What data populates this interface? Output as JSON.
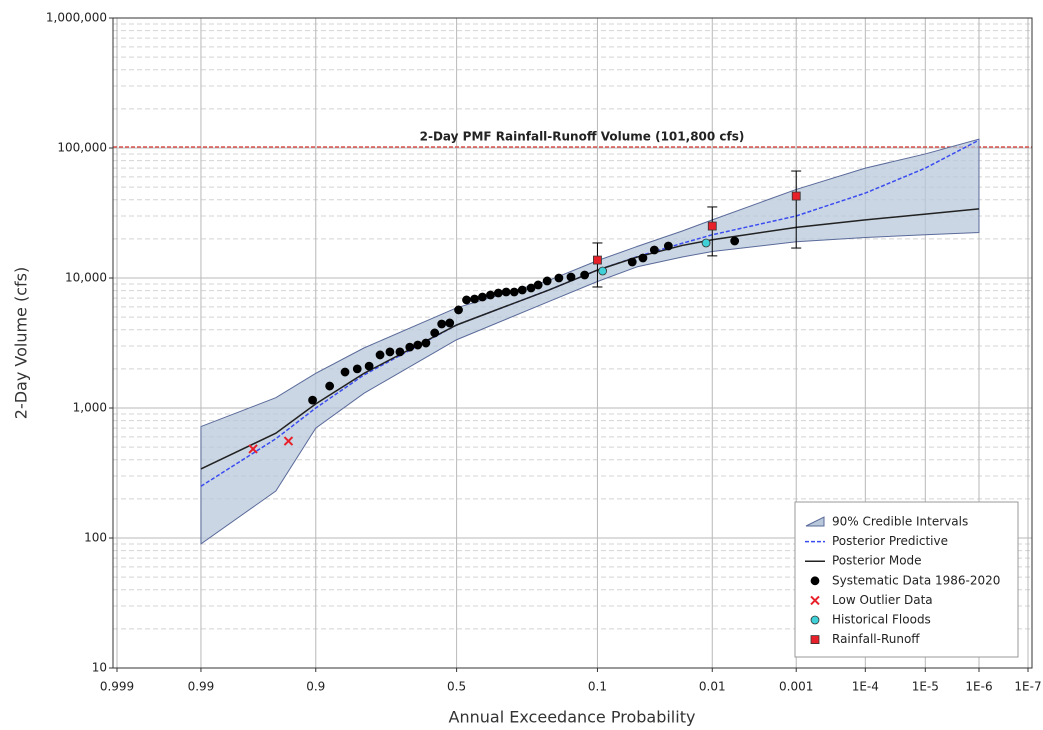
{
  "chart_data": {
    "type": "frequency",
    "xlabel": "Annual Exceedance Probability",
    "ylabel": "2-Day Volume (cfs)",
    "xscale": "normal-probability",
    "yscale": "log",
    "grid": true,
    "legend": "lower right",
    "xlim": [
      0.999,
      1e-07
    ],
    "xticks": [
      0.999,
      0.99,
      0.9,
      0.5,
      0.1,
      0.01,
      0.001,
      {
        "value": 0.0001,
        "label": "1E-4"
      },
      {
        "value": 1e-05,
        "label": "1E-5"
      },
      {
        "value": 1e-06,
        "label": "1E-6"
      },
      {
        "value": 1e-07,
        "label": "1E-7"
      }
    ],
    "ylim": [
      10,
      1000000
    ],
    "yticks": [
      10,
      100,
      {
        "value": 1000,
        "label": "1,000"
      },
      {
        "value": 10000,
        "label": "10,000"
      },
      {
        "value": 100000,
        "label": "100,000"
      },
      {
        "value": 1000000,
        "label": "1,000,000"
      }
    ],
    "reference_line": {
      "value": 101800,
      "color": "#d9534f",
      "label": "2-Day PMF Rainfall-Runoff Volume (101,800 cfs)"
    },
    "series": [
      {
        "name": "90% Credible Intervals",
        "kind": "band",
        "color": "#b8c8da",
        "edge": "#5a6a9a",
        "x": [
          0.99,
          0.95,
          0.9,
          0.8,
          0.5,
          0.2,
          0.1,
          0.05,
          0.02,
          0.01,
          0.001,
          0.0001,
          1e-05,
          1e-06
        ],
        "upper": [
          720,
          1200,
          1850,
          2900,
          5900,
          9600,
          13600,
          17500,
          23000,
          28000,
          48000,
          70000,
          90000,
          117000
        ],
        "lower": [
          90,
          230,
          700,
          1300,
          3350,
          6600,
          9400,
          12200,
          14500,
          16000,
          19000,
          20500,
          21500,
          22400
        ]
      },
      {
        "name": "Posterior Predictive",
        "kind": "line",
        "dash": true,
        "color": "#3a4cf0",
        "x": [
          0.99,
          0.95,
          0.9,
          0.8,
          0.5,
          0.2,
          0.1,
          0.05,
          0.02,
          0.01,
          0.001,
          0.0001,
          1e-05,
          1e-06
        ],
        "values": [
          250,
          580,
          1000,
          1800,
          4350,
          8100,
          11500,
          14600,
          18500,
          21500,
          30000,
          45000,
          70000,
          115000
        ]
      },
      {
        "name": "Posterior Mode",
        "kind": "line",
        "color": "#222222",
        "x": [
          0.99,
          0.95,
          0.9,
          0.8,
          0.5,
          0.2,
          0.1,
          0.05,
          0.02,
          0.01,
          0.001,
          0.0001,
          1e-05,
          1e-06
        ],
        "values": [
          340,
          640,
          1075,
          1850,
          4350,
          8100,
          11500,
          14500,
          17800,
          19700,
          24500,
          28000,
          31000,
          34000
        ]
      },
      {
        "name": "Systematic Data 1986-2020",
        "kind": "scatter",
        "marker": "circle",
        "color": "#000000",
        "x": [
          0.905,
          0.876,
          0.845,
          0.817,
          0.787,
          0.757,
          0.728,
          0.697,
          0.665,
          0.638,
          0.61,
          0.579,
          0.554,
          0.525,
          0.493,
          0.464,
          0.435,
          0.407,
          0.379,
          0.352,
          0.326,
          0.3,
          0.275,
          0.249,
          0.229,
          0.205,
          0.176,
          0.149,
          0.122,
          0.055,
          0.045,
          0.036,
          0.027,
          0.0057
        ],
        "values": [
          1150,
          1475,
          1890,
          2000,
          2100,
          2560,
          2700,
          2700,
          2940,
          3050,
          3160,
          3780,
          4430,
          4510,
          5680,
          6780,
          6890,
          7140,
          7400,
          7670,
          7800,
          7800,
          8090,
          8380,
          8840,
          9490,
          10000,
          10180,
          10550,
          13280,
          14250,
          16410,
          17620,
          19270
        ]
      },
      {
        "name": "Low Outlier Data",
        "kind": "scatter",
        "marker": "x",
        "color": "#e8202a",
        "x": [
          0.968,
          0.937
        ],
        "values": [
          484,
          557
        ]
      },
      {
        "name": "Historical Floods",
        "kind": "scatter",
        "marker": "circle",
        "color": "#3fd0d8",
        "x": [
          0.092,
          0.0116
        ],
        "values": [
          11320,
          18590
        ]
      },
      {
        "name": "Rainfall-Runoff",
        "kind": "scatter",
        "marker": "square",
        "color": "#e8202a",
        "x": [
          0.1,
          0.01,
          0.001
        ],
        "values": [
          13740,
          25100,
          42700
        ],
        "lower": [
          8530,
          14800,
          17000
        ],
        "upper": [
          18600,
          35200,
          66500
        ]
      }
    ]
  }
}
